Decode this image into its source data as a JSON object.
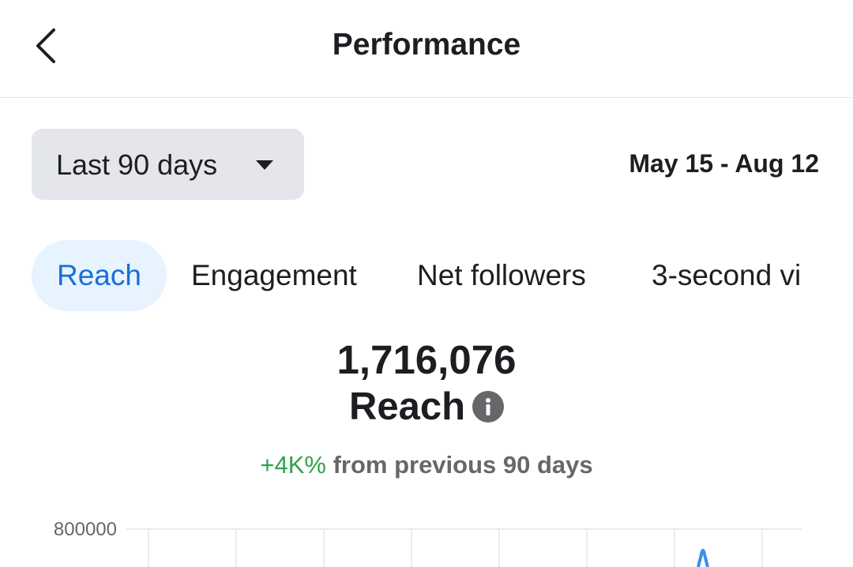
{
  "header": {
    "title": "Performance"
  },
  "filter": {
    "label": "Last 90 days",
    "date_range": "May 15 - Aug 12"
  },
  "tabs": [
    "Reach",
    "Engagement",
    "Net followers",
    "3-second vi"
  ],
  "metric": {
    "value": "1,716,076",
    "label": "Reach",
    "change": "+4K%",
    "change_text": "from previous 90 days"
  },
  "chart": {
    "yticks": [
      800000
    ]
  }
}
